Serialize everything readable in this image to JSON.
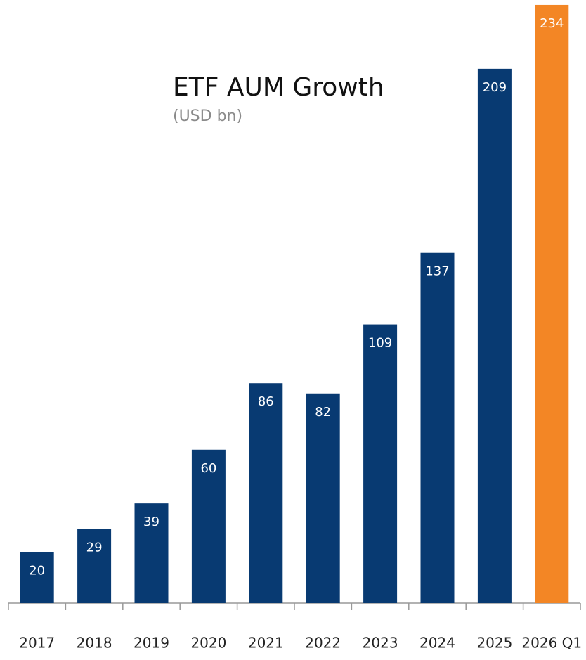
{
  "chart_data": {
    "type": "bar",
    "title": "ETF AUM Growth",
    "subtitle": "(USD bn)",
    "categories": [
      "2017",
      "2018",
      "2019",
      "2020",
      "2021",
      "2022",
      "2023",
      "2024",
      "2025",
      "2026 Q1"
    ],
    "values": [
      20,
      29,
      39,
      60,
      86,
      82,
      109,
      137,
      209,
      234
    ],
    "colors": [
      "#083a72",
      "#083a72",
      "#083a72",
      "#083a72",
      "#083a72",
      "#083a72",
      "#083a72",
      "#083a72",
      "#083a72",
      "#f38625"
    ]
  }
}
